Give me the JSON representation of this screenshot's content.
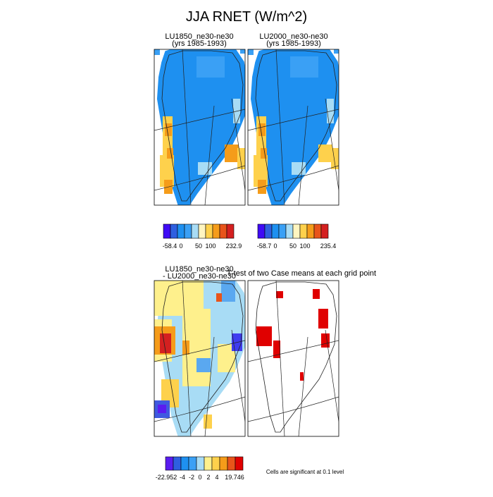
{
  "title": "JJA RNET (W/m^2)",
  "panels": [
    {
      "title": "LU1850_ne30-ne30",
      "subtitle": "(yrs 1985-1993)"
    },
    {
      "title": "LU2000_ne30-ne30",
      "subtitle": "(yrs 1985-1993)"
    },
    {
      "title": "LU1850_ne30-ne30",
      "subtitle": "- LU2000_ne30-ne30"
    },
    {
      "title": "T-test of two Case means at each grid point"
    }
  ],
  "colorbars": [
    {
      "labels": [
        "-58.4",
        "0",
        "50",
        "100",
        "232.9"
      ]
    },
    {
      "labels": [
        "-58.7",
        "0",
        "50",
        "100",
        "235.4"
      ]
    },
    {
      "labels": [
        "-22.952",
        "-4",
        "-2",
        "0",
        "2",
        "4",
        "19.746"
      ]
    }
  ],
  "note": "Cells are significant at 0.1 level"
}
